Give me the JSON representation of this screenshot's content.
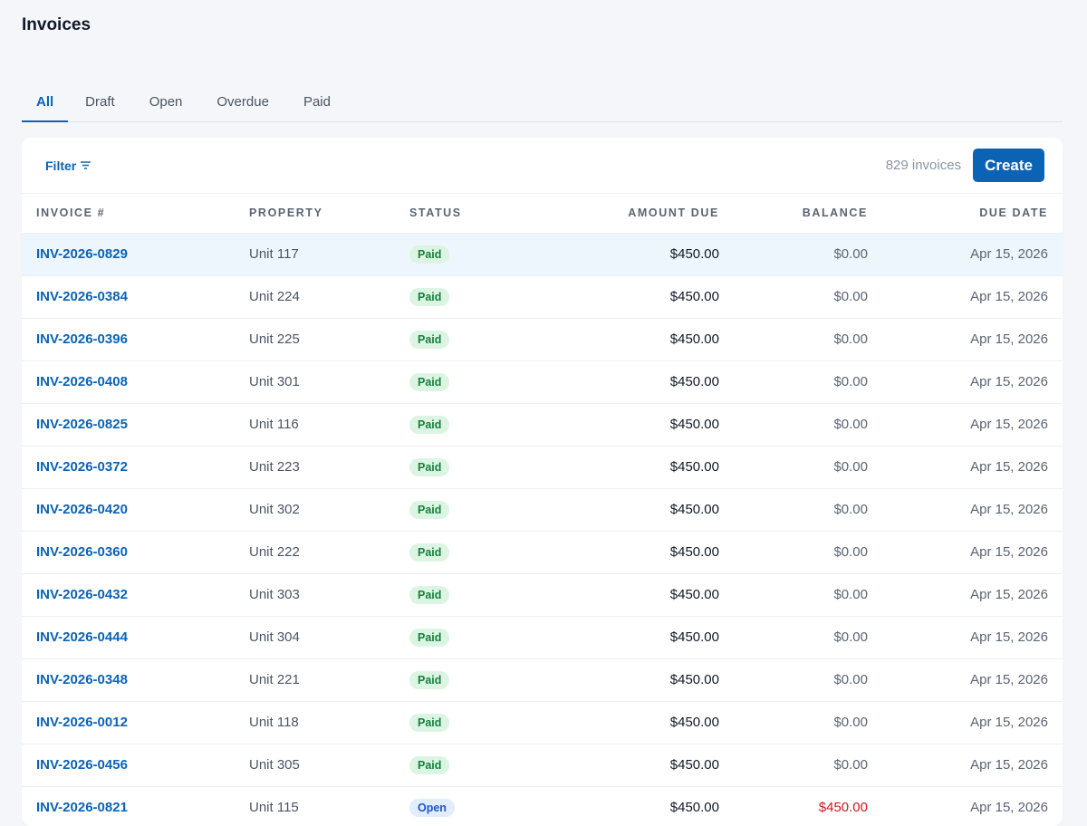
{
  "page": {
    "title": "Invoices"
  },
  "tabs": [
    {
      "label": "All",
      "active": true
    },
    {
      "label": "Draft",
      "active": false
    },
    {
      "label": "Open",
      "active": false
    },
    {
      "label": "Overdue",
      "active": false
    },
    {
      "label": "Paid",
      "active": false
    }
  ],
  "toolbar": {
    "filter_label": "Filter",
    "count_label": "829 invoices",
    "create_label": "Create"
  },
  "table": {
    "columns": [
      "INVOICE #",
      "PROPERTY",
      "STATUS",
      "AMOUNT DUE",
      "BALANCE",
      "DUE DATE"
    ],
    "rows": [
      {
        "invoice": "INV-2026-0829",
        "property": "Unit 117",
        "status": "Paid",
        "amount": "$450.00",
        "balance": "$0.00",
        "due": "Apr 15, 2026"
      },
      {
        "invoice": "INV-2026-0384",
        "property": "Unit 224",
        "status": "Paid",
        "amount": "$450.00",
        "balance": "$0.00",
        "due": "Apr 15, 2026"
      },
      {
        "invoice": "INV-2026-0396",
        "property": "Unit 225",
        "status": "Paid",
        "amount": "$450.00",
        "balance": "$0.00",
        "due": "Apr 15, 2026"
      },
      {
        "invoice": "INV-2026-0408",
        "property": "Unit 301",
        "status": "Paid",
        "amount": "$450.00",
        "balance": "$0.00",
        "due": "Apr 15, 2026"
      },
      {
        "invoice": "INV-2026-0825",
        "property": "Unit 116",
        "status": "Paid",
        "amount": "$450.00",
        "balance": "$0.00",
        "due": "Apr 15, 2026"
      },
      {
        "invoice": "INV-2026-0372",
        "property": "Unit 223",
        "status": "Paid",
        "amount": "$450.00",
        "balance": "$0.00",
        "due": "Apr 15, 2026"
      },
      {
        "invoice": "INV-2026-0420",
        "property": "Unit 302",
        "status": "Paid",
        "amount": "$450.00",
        "balance": "$0.00",
        "due": "Apr 15, 2026"
      },
      {
        "invoice": "INV-2026-0360",
        "property": "Unit 222",
        "status": "Paid",
        "amount": "$450.00",
        "balance": "$0.00",
        "due": "Apr 15, 2026"
      },
      {
        "invoice": "INV-2026-0432",
        "property": "Unit 303",
        "status": "Paid",
        "amount": "$450.00",
        "balance": "$0.00",
        "due": "Apr 15, 2026"
      },
      {
        "invoice": "INV-2026-0444",
        "property": "Unit 304",
        "status": "Paid",
        "amount": "$450.00",
        "balance": "$0.00",
        "due": "Apr 15, 2026"
      },
      {
        "invoice": "INV-2026-0348",
        "property": "Unit 221",
        "status": "Paid",
        "amount": "$450.00",
        "balance": "$0.00",
        "due": "Apr 15, 2026"
      },
      {
        "invoice": "INV-2026-0012",
        "property": "Unit 118",
        "status": "Paid",
        "amount": "$450.00",
        "balance": "$0.00",
        "due": "Apr 15, 2026"
      },
      {
        "invoice": "INV-2026-0456",
        "property": "Unit 305",
        "status": "Paid",
        "amount": "$450.00",
        "balance": "$0.00",
        "due": "Apr 15, 2026"
      },
      {
        "invoice": "INV-2026-0821",
        "property": "Unit 115",
        "status": "Open",
        "amount": "$450.00",
        "balance": "$450.00",
        "due": "Apr 15, 2026"
      }
    ]
  },
  "colors": {
    "accent": "#0b63b6",
    "paid_badge_bg": "#dcf5e3",
    "open_badge_bg": "#e1ecfd",
    "balance_due": "#d0171c"
  },
  "icons": {
    "filter": "filter-lines-icon"
  }
}
